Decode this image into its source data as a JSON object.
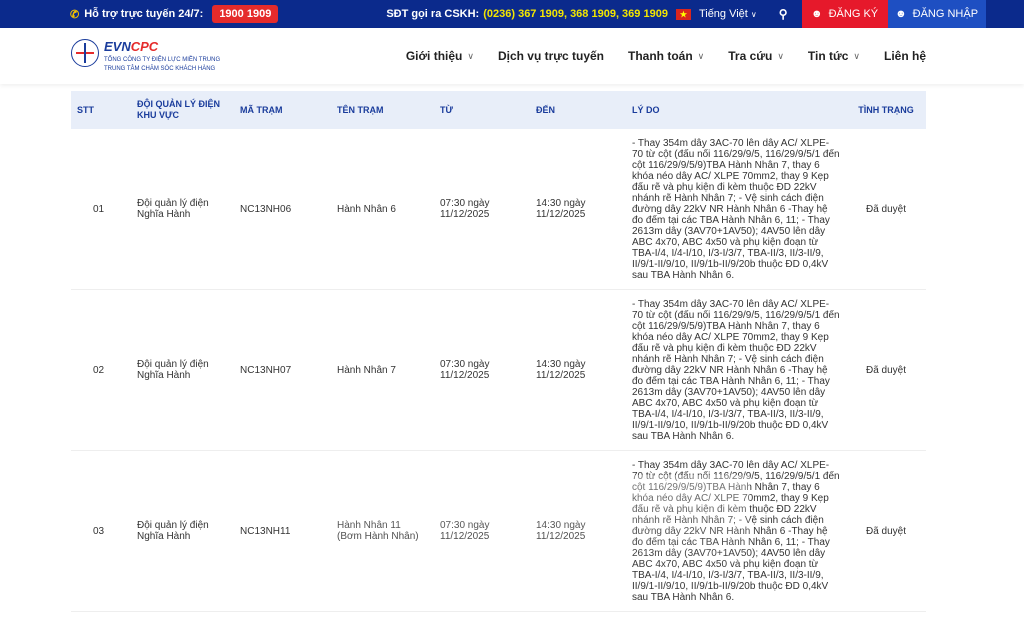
{
  "topbar": {
    "support_label": "Hỗ trợ trực tuyến 24/7:",
    "hotline": "1900 1909",
    "cskh_label": "SĐT gọi ra CSKH:",
    "cskh_numbers": "(0236) 367 1909, 368 1909, 369 1909",
    "language": "Tiếng Việt",
    "register": "ĐĂNG KÝ",
    "login": "ĐĂNG NHẬP"
  },
  "logo": {
    "name_a": "EVN",
    "name_b": "CPC",
    "line1": "TỔNG CÔNG TY ĐIỆN LỰC MIỀN TRUNG",
    "line2": "TRUNG TÂM CHĂM SÓC KHÁCH HÀNG"
  },
  "nav": [
    {
      "label": "Giới thiệu",
      "dropdown": true
    },
    {
      "label": "Dịch vụ trực tuyến",
      "dropdown": false
    },
    {
      "label": "Thanh toán",
      "dropdown": true
    },
    {
      "label": "Tra cứu",
      "dropdown": true
    },
    {
      "label": "Tin tức",
      "dropdown": true
    },
    {
      "label": "Liên hệ",
      "dropdown": false
    }
  ],
  "table": {
    "headers": [
      "STT",
      "ĐỘI QUẢN LÝ ĐIỆN KHU VỰC",
      "MÃ TRẠM",
      "TÊN TRẠM",
      "TỪ",
      "ĐẾN",
      "LÝ DO",
      "TÌNH TRẠNG"
    ],
    "rows": [
      {
        "stt": "01",
        "team": "Đội quản lý điện Nghĩa Hành",
        "code": "NC13NH06",
        "name": "Hành Nhân 6",
        "from": "07:30 ngày 11/12/2025",
        "to": "14:30 ngày 11/12/2025",
        "reason": "- Thay 354m dây 3AC-70 lên dây AC/ XLPE-70 từ cột (đấu nối 116/29/9/5, 116/29/9/5/1 đến cột 116/29/9/5/9)TBA Hành Nhân 7, thay 6 khóa néo dây AC/ XLPE 70mm2, thay 9 Kẹp đấu rẽ và phụ kiện đi kèm thuộc ĐD 22kV nhánh rẽ Hành Nhân 7; - Vệ sinh cách điện đường dây 22kV NR Hành Nhân 6 -Thay hệ đo đếm tại các TBA Hành Nhân 6, 11; - Thay 2613m dây (3AV70+1AV50); 4AV50 lên dây ABC 4x70, ABC 4x50 và phụ kiện đoạn từ TBA-I/4, I/4-I/10, I/3-I/3/7, TBA-II/3, II/3-II/9, II/9/1-II/9/10, II/9/1b-II/9/20b thuộc ĐD 0,4kV sau TBA Hành Nhân 6.",
        "status": "Đã duyệt"
      },
      {
        "stt": "02",
        "team": "Đội quản lý điện Nghĩa Hành",
        "code": "NC13NH07",
        "name": "Hành Nhân 7",
        "from": "07:30 ngày 11/12/2025",
        "to": "14:30 ngày 11/12/2025",
        "reason": "- Thay 354m dây 3AC-70 lên dây AC/ XLPE-70 từ cột (đấu nối 116/29/9/5, 116/29/9/5/1 đến cột 116/29/9/5/9)TBA Hành Nhân 7, thay 6 khóa néo dây AC/ XLPE 70mm2, thay 9 Kẹp đấu rẽ và phụ kiện đi kèm thuộc ĐD 22kV nhánh rẽ Hành Nhân 7; - Vệ sinh cách điện đường dây 22kV NR Hành Nhân 6 -Thay hệ đo đếm tại các TBA Hành Nhân 6, 11; - Thay 2613m dây (3AV70+1AV50); 4AV50 lên dây ABC 4x70, ABC 4x50 và phụ kiện đoạn từ TBA-I/4, I/4-I/10, I/3-I/3/7, TBA-II/3, II/3-II/9, II/9/1-II/9/10, II/9/1b-II/9/20b thuộc ĐD 0,4kV sau TBA Hành Nhân 6.",
        "status": "Đã duyệt"
      },
      {
        "stt": "03",
        "team": "Đội quản lý điện Nghĩa Hành",
        "code": "NC13NH11",
        "name": "Hành Nhân 11 (Bơm Hành Nhân)",
        "from": "07:30 ngày 11/12/2025",
        "to": "14:30 ngày 11/12/2025",
        "reason": "- Thay 354m dây 3AC-70 lên dây AC/ XLPE-70 từ cột (đấu nối 116/29/9/5, 116/29/9/5/1 đến cột 116/29/9/5/9)TBA Hành Nhân 7, thay 6 khóa néo dây AC/ XLPE 70mm2, thay 9 Kẹp đấu rẽ và phụ kiện đi kèm thuộc ĐD 22kV nhánh rẽ Hành Nhân 7; - Vệ sinh cách điện đường dây 22kV NR Hành Nhân 6 -Thay hệ đo đếm tại các TBA Hành Nhân 6, 11; - Thay 2613m dây (3AV70+1AV50); 4AV50 lên dây ABC 4x70, ABC 4x50 và phụ kiện đoạn từ TBA-I/4, I/4-I/10, I/3-I/3/7, TBA-II/3, II/3-II/9, II/9/1-II/9/10, II/9/1b-II/9/20b thuộc ĐD 0,4kV sau TBA Hành Nhân 6.",
        "status": "Đã duyệt"
      }
    ]
  },
  "colors": {
    "topbar": "#0b2a8c",
    "hotline": "#e52b2b",
    "register": "#e6192b",
    "login": "#1e4fc2",
    "header_row": "#e8eef9",
    "accent_text": "#1a3c9c"
  },
  "icons": {
    "phone": "phone-icon",
    "flag": "vietnam-flag-icon",
    "search": "search-icon",
    "user": "user-icon",
    "chevron": "chevron-down-icon"
  }
}
